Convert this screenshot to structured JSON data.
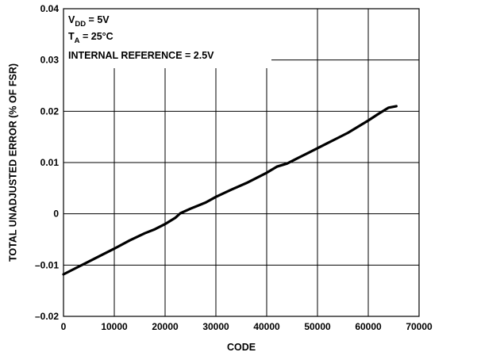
{
  "chart_data": {
    "type": "line",
    "title": "",
    "xlabel": "CODE",
    "ylabel": "TOTAL UNADJUSTED ERROR (% OF FSR)",
    "xlim": [
      0,
      70000
    ],
    "ylim": [
      -0.02,
      0.04
    ],
    "x_ticks": [
      0,
      10000,
      20000,
      30000,
      40000,
      50000,
      60000,
      70000
    ],
    "x_tick_labels": [
      "0",
      "10000",
      "20000",
      "30000",
      "40000",
      "50000",
      "60000",
      "70000"
    ],
    "y_ticks": [
      -0.02,
      -0.01,
      0,
      0.01,
      0.02,
      0.03,
      0.04
    ],
    "y_tick_labels": [
      "–0.02",
      "–0.01",
      "0",
      "0.01",
      "0.02",
      "0.03",
      "0.04"
    ],
    "grid": true,
    "annotations": {
      "line1_main": "V",
      "line1_sub": "DD",
      "line1_rest": " = 5V",
      "line2_main": "T",
      "line2_sub": "A",
      "line2_rest": " = 25°C",
      "line3": "INTERNAL REFERENCE = 2.5V"
    },
    "series": [
      {
        "color": "#000000",
        "x": [
          0,
          2000,
          5000,
          8000,
          10000,
          13000,
          16000,
          18000,
          20000,
          22000,
          23000,
          25000,
          28000,
          30000,
          33000,
          36000,
          38000,
          40000,
          42000,
          44000,
          46000,
          48000,
          50000,
          52000,
          54000,
          56000,
          58000,
          60000,
          62000,
          64000,
          65535
        ],
        "y": [
          -0.0118,
          -0.0108,
          -0.0093,
          -0.0078,
          -0.0068,
          -0.0052,
          -0.0038,
          -0.003,
          -0.002,
          -0.0008,
          0.0001,
          0.001,
          0.0022,
          0.0033,
          0.0047,
          0.006,
          0.007,
          0.008,
          0.0092,
          0.0098,
          0.0108,
          0.0118,
          0.0128,
          0.0138,
          0.0148,
          0.0158,
          0.017,
          0.0182,
          0.0195,
          0.0207,
          0.021
        ]
      }
    ]
  }
}
